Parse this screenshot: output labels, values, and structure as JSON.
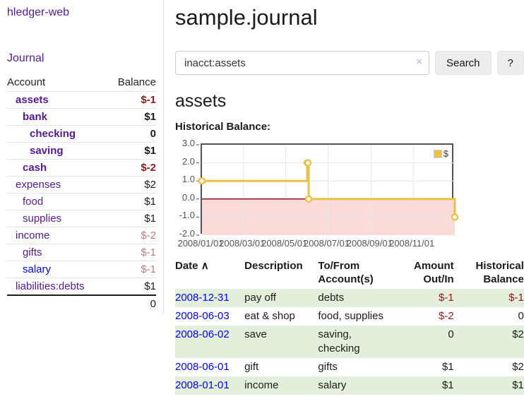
{
  "app": {
    "brand": "hledger-web",
    "nav_journal": "Journal"
  },
  "sidebar": {
    "header": {
      "account": "Account",
      "balance": "Balance"
    },
    "accounts": [
      {
        "name": "assets",
        "balance": "$-1",
        "depth": 1,
        "bold": true,
        "visited": true,
        "balance_style": "negative-strong"
      },
      {
        "name": "bank",
        "balance": "$1",
        "depth": 2,
        "bold": true,
        "visited": true,
        "balance_style": "normal"
      },
      {
        "name": "checking",
        "balance": "0",
        "depth": 3,
        "bold": true,
        "visited": true,
        "balance_style": "normal"
      },
      {
        "name": "saving",
        "balance": "$1",
        "depth": 3,
        "bold": true,
        "visited": true,
        "balance_style": "normal"
      },
      {
        "name": "cash",
        "balance": "$-2",
        "depth": 2,
        "bold": true,
        "visited": true,
        "balance_style": "negative-strong"
      },
      {
        "name": "expenses",
        "balance": "$2",
        "depth": 1,
        "bold": false,
        "visited": true,
        "balance_style": "normal"
      },
      {
        "name": "food",
        "balance": "$1",
        "depth": 2,
        "bold": false,
        "visited": true,
        "balance_style": "normal"
      },
      {
        "name": "supplies",
        "balance": "$1",
        "depth": 2,
        "bold": false,
        "visited": true,
        "balance_style": "normal"
      },
      {
        "name": "income",
        "balance": "$-2",
        "depth": 1,
        "bold": false,
        "visited": true,
        "balance_style": "negative-muted"
      },
      {
        "name": "gifts",
        "balance": "$-1",
        "depth": 2,
        "bold": false,
        "visited": true,
        "balance_style": "negative-muted"
      },
      {
        "name": "salary",
        "balance": "$-1",
        "depth": 2,
        "bold": false,
        "visited": false,
        "balance_style": "negative-muted"
      },
      {
        "name": "liabilities:debts",
        "balance": "$1",
        "depth": 1,
        "bold": false,
        "visited": true,
        "balance_style": "normal"
      }
    ],
    "total": "0"
  },
  "main": {
    "title": "sample.journal",
    "search": {
      "value": "inacct:assets",
      "clear_icon": "×",
      "button_label": "Search",
      "help_label": "?"
    },
    "account_heading": "assets",
    "chart_label": "Historical Balance:",
    "register": {
      "columns": [
        "Date",
        "Description",
        "To/From Account(s)",
        "Amount Out/In",
        "Historical Balance"
      ],
      "sort_icon": "∧",
      "rows": [
        {
          "date": "2008-12-31",
          "description": "pay off",
          "accounts": "debts",
          "amount": "$-1",
          "amount_negative": true,
          "balance": "$-1",
          "balance_negative": true,
          "shade": true
        },
        {
          "date": "2008-06-03",
          "description": "eat & shop",
          "accounts": "food, supplies",
          "amount": "$-2",
          "amount_negative": true,
          "balance": "0",
          "balance_negative": false,
          "shade": false
        },
        {
          "date": "2008-06-02",
          "description": "save",
          "accounts": "saving, checking",
          "amount": "0",
          "amount_negative": false,
          "balance": "$2",
          "balance_negative": false,
          "shade": true
        },
        {
          "date": "2008-06-01",
          "description": "gift",
          "accounts": "gifts",
          "amount": "$1",
          "amount_negative": false,
          "balance": "$2",
          "balance_negative": false,
          "shade": false
        },
        {
          "date": "2008-01-01",
          "description": "income",
          "accounts": "salary",
          "amount": "$1",
          "amount_negative": false,
          "balance": "$1",
          "balance_negative": false,
          "shade": true
        }
      ]
    }
  },
  "chart_data": {
    "type": "line",
    "title": "Historical Balance:",
    "step": true,
    "series": [
      {
        "name": "$",
        "color": "#e9c04a",
        "points": [
          [
            "2008-01-01",
            1
          ],
          [
            "2008-06-01",
            2
          ],
          [
            "2008-06-02",
            2
          ],
          [
            "2008-06-03",
            0
          ],
          [
            "2008-12-31",
            -1
          ]
        ]
      }
    ],
    "x_range": [
      "2008-01-01",
      "2008-12-31"
    ],
    "ylim": [
      -2,
      3
    ],
    "y_ticks": [
      {
        "value": 3,
        "label": "3.0"
      },
      {
        "value": 2,
        "label": "2.0"
      },
      {
        "value": 1,
        "label": "1.0"
      },
      {
        "value": 0,
        "label": "0.0"
      },
      {
        "value": -1,
        "label": "-1.0"
      },
      {
        "value": -2,
        "label": "-2.0"
      }
    ],
    "x_ticks": [
      {
        "date": "2008-01-01",
        "label": "2008/01/01"
      },
      {
        "date": "2008-03-01",
        "label": "2008/03/01"
      },
      {
        "date": "2008-05-01",
        "label": "2008/05/01"
      },
      {
        "date": "2008-07-01",
        "label": "2008/07/01"
      },
      {
        "date": "2008-09-01",
        "label": "2008/09/01"
      },
      {
        "date": "2008-11-01",
        "label": "2008/11/01"
      }
    ],
    "grid": true,
    "legend_position": "top-right",
    "negative_fill": "#fbdada",
    "zero_line_color": "#8f1414",
    "grid_color": "#e7e7e7"
  },
  "colors": {
    "accent_purple": "#551a8b",
    "link_blue": "#0000ee",
    "negative_strong": "#8b1a1a",
    "negative_muted": "#bd7c7c",
    "row_stripe_green": "#e3efdb",
    "chart_line_gold": "#e9c04a"
  }
}
